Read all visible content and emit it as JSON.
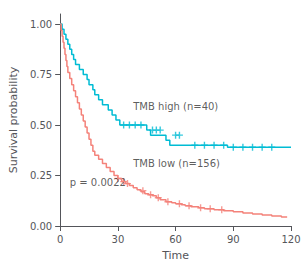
{
  "chart_data": {
    "type": "line",
    "xlabel": "Time",
    "ylabel": "Survival probability",
    "xlim": [
      0,
      120
    ],
    "ylim": [
      0,
      1.05
    ],
    "xticks": [
      0,
      30,
      60,
      90,
      120
    ],
    "yticks": [
      {
        "value": 0,
        "label": "0.00"
      },
      0.25,
      {
        "value": 0.5,
        "label": "0.50"
      },
      0.75,
      {
        "value": 1,
        "label": "1.00"
      }
    ],
    "grid": false,
    "series": [
      {
        "type": "line",
        "line_style": "step",
        "color": "#00BCD4",
        "x": [
          0,
          1,
          1,
          2,
          2,
          3,
          3,
          4,
          4,
          5,
          5,
          6,
          6,
          7,
          7,
          8,
          8,
          10,
          10,
          12,
          12,
          14,
          14,
          15,
          15,
          17,
          17,
          18,
          18,
          20,
          20,
          22,
          22,
          25,
          25,
          27,
          27,
          29,
          29,
          31,
          31,
          45,
          45,
          47,
          47,
          55,
          55,
          57,
          57,
          87,
          87,
          120
        ],
        "values": [
          1,
          1,
          0.975,
          0.975,
          0.95,
          0.95,
          0.925,
          0.925,
          0.9,
          0.9,
          0.875,
          0.875,
          0.85,
          0.85,
          0.825,
          0.825,
          0.8,
          0.8,
          0.775,
          0.775,
          0.75,
          0.75,
          0.725,
          0.725,
          0.7,
          0.7,
          0.675,
          0.675,
          0.65,
          0.65,
          0.625,
          0.625,
          0.6,
          0.6,
          0.575,
          0.575,
          0.55,
          0.55,
          0.525,
          0.525,
          0.5,
          0.5,
          0.475,
          0.475,
          0.45,
          0.45,
          0.425,
          0.425,
          0.4,
          0.4,
          0.39,
          0.39
        ]
      },
      {
        "type": "line",
        "line_style": "step",
        "color": "#F4827A",
        "x": [
          0,
          0.5,
          0.5,
          1,
          1,
          1.5,
          1.5,
          2,
          2,
          2.5,
          2.5,
          3,
          3,
          3.5,
          3.5,
          4,
          4,
          5,
          5,
          6,
          6,
          7,
          7,
          8,
          8,
          9,
          9,
          10,
          10,
          11,
          11,
          12,
          12,
          13,
          13,
          14,
          14,
          15,
          15,
          16,
          16,
          17,
          17,
          18,
          18,
          20,
          20,
          22,
          22,
          24,
          24,
          26,
          26,
          28,
          28,
          30,
          30,
          32,
          32,
          34,
          34,
          36,
          36,
          38,
          38,
          40,
          40,
          42,
          42,
          44,
          44,
          46,
          46,
          48,
          48,
          50,
          50,
          52,
          52,
          55,
          55,
          58,
          58,
          60,
          60,
          63,
          63,
          65,
          65,
          68,
          68,
          72,
          72,
          75,
          75,
          80,
          80,
          85,
          85,
          90,
          90,
          95,
          95,
          100,
          100,
          105,
          105,
          110,
          110,
          115,
          115,
          118
        ],
        "values": [
          1,
          1,
          0.97,
          0.97,
          0.94,
          0.94,
          0.91,
          0.91,
          0.88,
          0.88,
          0.85,
          0.85,
          0.82,
          0.82,
          0.79,
          0.79,
          0.76,
          0.76,
          0.73,
          0.73,
          0.7,
          0.7,
          0.67,
          0.67,
          0.64,
          0.64,
          0.61,
          0.61,
          0.58,
          0.58,
          0.55,
          0.55,
          0.52,
          0.52,
          0.49,
          0.49,
          0.46,
          0.46,
          0.43,
          0.43,
          0.4,
          0.4,
          0.37,
          0.37,
          0.35,
          0.35,
          0.33,
          0.33,
          0.31,
          0.31,
          0.29,
          0.29,
          0.27,
          0.27,
          0.25,
          0.25,
          0.235,
          0.235,
          0.22,
          0.22,
          0.21,
          0.21,
          0.2,
          0.2,
          0.19,
          0.19,
          0.18,
          0.18,
          0.17,
          0.17,
          0.16,
          0.16,
          0.155,
          0.155,
          0.15,
          0.15,
          0.14,
          0.14,
          0.13,
          0.13,
          0.12,
          0.12,
          0.115,
          0.115,
          0.11,
          0.11,
          0.105,
          0.105,
          0.1,
          0.1,
          0.095,
          0.095,
          0.09,
          0.09,
          0.085,
          0.085,
          0.08,
          0.08,
          0.075,
          0.075,
          0.07,
          0.07,
          0.065,
          0.065,
          0.06,
          0.06,
          0.055,
          0.055,
          0.05,
          0.05,
          0.045,
          0.045
        ]
      },
      {
        "type": "scatter",
        "marker": "plus",
        "color": "#00BCD4",
        "x": [
          33,
          36,
          39,
          42,
          48,
          50,
          52,
          60,
          62,
          70,
          75,
          80,
          85,
          90,
          95,
          100,
          105,
          110
        ],
        "values": [
          0.5,
          0.5,
          0.5,
          0.5,
          0.475,
          0.475,
          0.475,
          0.45,
          0.45,
          0.4,
          0.4,
          0.4,
          0.4,
          0.39,
          0.39,
          0.39,
          0.39,
          0.39
        ]
      },
      {
        "type": "scatter",
        "marker": "plus",
        "color": "#F4827A",
        "x": [
          30,
          33,
          35,
          43,
          47,
          51,
          56,
          62,
          67,
          73,
          78,
          84
        ],
        "values": [
          0.235,
          0.22,
          0.21,
          0.175,
          0.155,
          0.14,
          0.12,
          0.11,
          0.1,
          0.09,
          0.085,
          0.08
        ]
      }
    ],
    "annotations": [
      {
        "text": "p = 0.0022",
        "x": 5,
        "y": 0.19
      },
      {
        "text": "TMB high (n=40)",
        "x": 38,
        "y": 0.565
      },
      {
        "text": "TMB low (n=156)",
        "x": 38,
        "y": 0.285
      }
    ]
  }
}
